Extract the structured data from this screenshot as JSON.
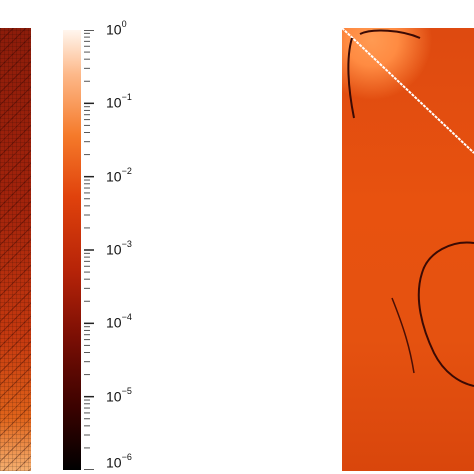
{
  "chart_data": [
    {
      "type": "heatmap",
      "panel": "left",
      "title": "",
      "xlabel": "",
      "ylabel": ""
    },
    {
      "type": "heatmap",
      "panel": "right",
      "title": "",
      "xlabel": "",
      "ylabel": ""
    }
  ],
  "colorbar": {
    "scale": "log",
    "range": [
      1e-06,
      1
    ],
    "base": "10",
    "ticks": [
      {
        "value": 1,
        "exponent": "0"
      },
      {
        "value": 0.1,
        "exponent": "−1"
      },
      {
        "value": 0.01,
        "exponent": "−2"
      },
      {
        "value": 0.001,
        "exponent": "−3"
      },
      {
        "value": 0.0001,
        "exponent": "−4"
      },
      {
        "value": 1e-05,
        "exponent": "−5"
      },
      {
        "value": 1e-06,
        "exponent": "−6"
      }
    ],
    "colormap": [
      "#000000",
      "#3a0200",
      "#7a0e04",
      "#b52308",
      "#e0420c",
      "#f57a2a",
      "#fdb98a",
      "#fff6ee"
    ]
  }
}
